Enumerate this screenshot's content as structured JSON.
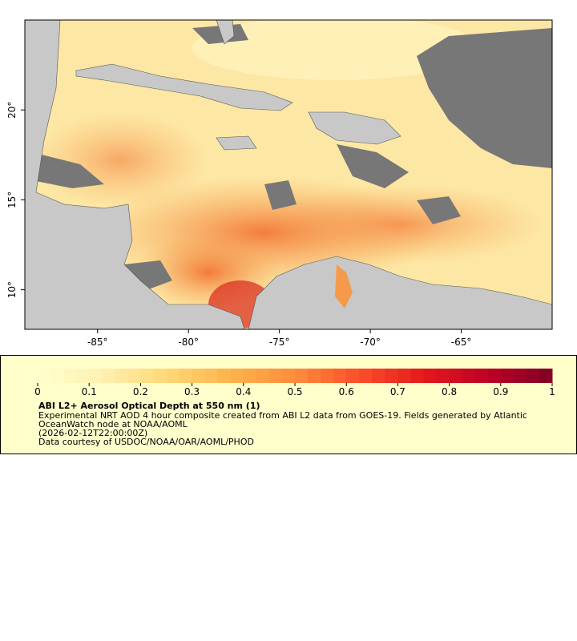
{
  "map": {
    "xlim": [
      -89,
      -60
    ],
    "ylim": [
      7.8,
      25
    ],
    "xticks": [
      {
        "value": -85,
        "label": "-85°"
      },
      {
        "value": -80,
        "label": "-80°"
      },
      {
        "value": -75,
        "label": "-75°"
      },
      {
        "value": -70,
        "label": "-70°"
      },
      {
        "value": -65,
        "label": "-65°"
      }
    ],
    "yticks": [
      {
        "value": 20,
        "label": "20°"
      },
      {
        "value": 15,
        "label": "15°"
      },
      {
        "value": 10,
        "label": "10°"
      }
    ]
  },
  "colorbar": {
    "range": [
      0,
      1
    ],
    "ticks": [
      0,
      0.1,
      0.2,
      0.3,
      0.4,
      0.5,
      0.6,
      0.7,
      0.8,
      0.9,
      1
    ],
    "colormap": [
      "#ffffcc",
      "#fff0b0",
      "#fed976",
      "#feb24c",
      "#fd8d3c",
      "#fc4e2a",
      "#e31a1c",
      "#bd0026",
      "#800026"
    ]
  },
  "legend": {
    "title": "ABI L2+ Aerosol Optical Depth at 550 nm (1)",
    "lines": [
      "Experimental NRT AOD 4 hour composite created from ABI L2 data from GOES-19. Fields generated by Atlantic",
      "OceanWatch node at NOAA/AOML",
      "(2026-02-12T22:00:00Z)",
      "Data courtesy of USDOC/NOAA/OAR/AOML/PHOD"
    ]
  }
}
